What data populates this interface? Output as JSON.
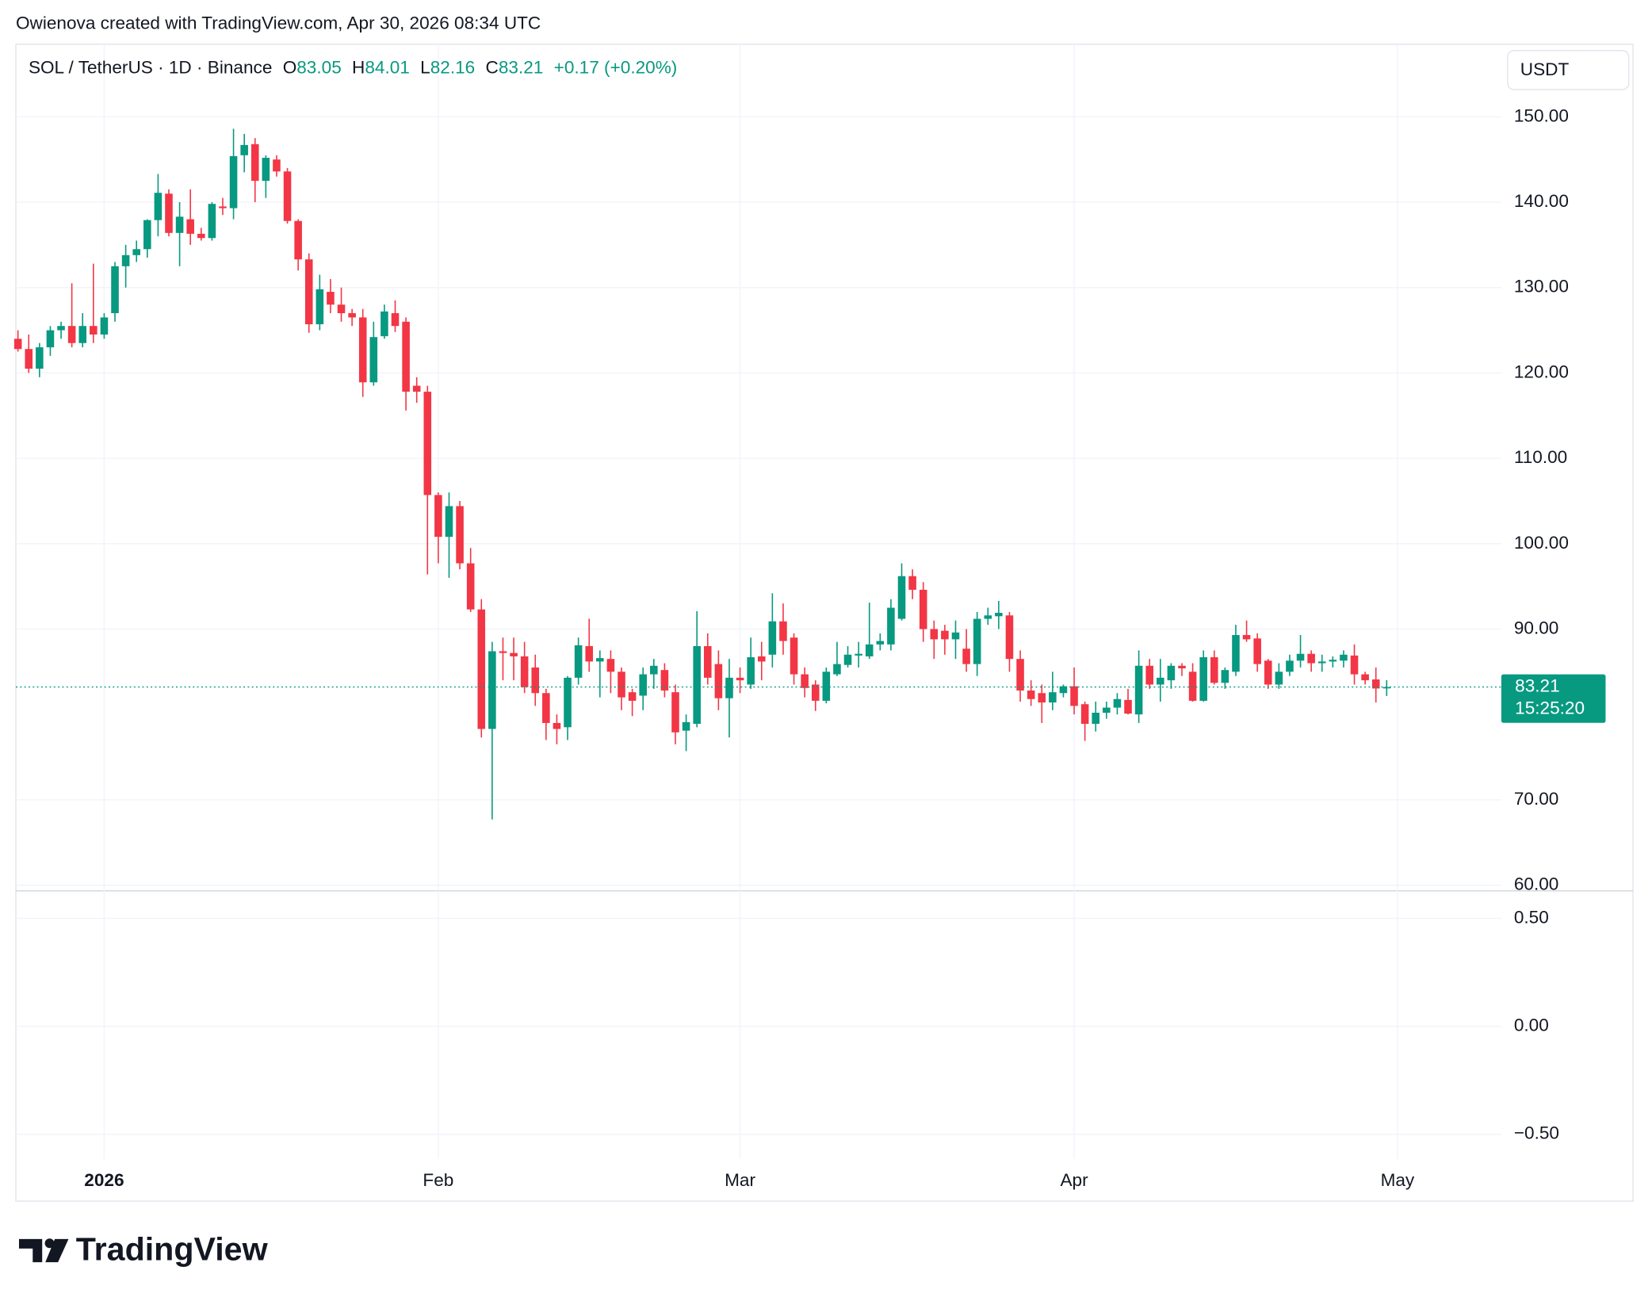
{
  "header": {
    "credit": "Owienova created with TradingView.com, Apr 30, 2026 08:34 UTC",
    "currency_button": "USDT"
  },
  "footer": {
    "logo": "TradingView"
  },
  "chart_data": {
    "type": "candlestick",
    "symbol": "SOL / TetherUS · 1D · Binance",
    "ohlc_letters": [
      "O",
      "H",
      "L",
      "C"
    ],
    "change_label": "+0.17 (+0.20%)",
    "countdown": "15:25:20",
    "up_color": "#089981",
    "down_color": "#f23645",
    "grid": true,
    "categories": [
      null,
      null,
      null,
      null,
      null,
      null,
      null,
      null,
      "2026",
      null,
      null,
      null,
      null,
      null,
      null,
      null,
      null,
      null,
      null,
      null,
      null,
      null,
      null,
      null,
      null,
      null,
      null,
      null,
      null,
      null,
      null,
      null,
      null,
      null,
      null,
      null,
      null,
      null,
      null,
      "Feb",
      null,
      null,
      null,
      null,
      null,
      null,
      null,
      null,
      null,
      null,
      null,
      null,
      null,
      null,
      null,
      null,
      null,
      null,
      null,
      null,
      null,
      null,
      null,
      null,
      null,
      null,
      null,
      "Mar",
      null,
      null,
      null,
      null,
      null,
      null,
      null,
      null,
      null,
      null,
      null,
      null,
      null,
      null,
      null,
      null,
      null,
      null,
      null,
      null,
      null,
      null,
      null,
      null,
      null,
      null,
      null,
      null,
      null,
      null,
      "Apr",
      null,
      null,
      null,
      null,
      null,
      null,
      null,
      null,
      null,
      null,
      null,
      null,
      null,
      null,
      null,
      null,
      null,
      null,
      null,
      null,
      null,
      null,
      null,
      null,
      null,
      null,
      null,
      null,
      null,
      "May"
    ],
    "open": [
      124.0,
      122.8,
      120.5,
      123.0,
      125.0,
      125.5,
      123.5,
      125.5,
      124.5,
      127.0,
      132.5,
      133.8,
      134.5,
      137.9,
      141.0,
      136.4,
      138.0,
      136.3,
      135.8,
      139.5,
      139.3,
      145.5,
      146.8,
      142.5,
      145.0,
      143.6,
      137.8,
      133.3,
      125.7,
      129.5,
      128.0,
      127.0,
      126.5,
      118.9,
      124.3,
      127.0,
      126.0,
      118.5,
      117.8,
      105.7,
      100.8,
      104.4,
      97.7,
      92.3,
      78.3,
      87.4,
      87.2,
      86.8,
      85.5,
      82.5,
      79.0,
      78.5,
      84.3,
      88.0,
      86.2,
      86.5,
      85.0,
      82.6,
      82.2,
      84.7,
      85.2,
      82.6,
      78.1,
      78.9,
      88.0,
      85.9,
      81.9,
      84.3,
      83.5,
      86.8,
      87.0,
      90.9,
      89.0,
      84.7,
      83.5,
      81.6,
      84.7,
      85.8,
      86.9,
      86.8,
      88.2,
      88.2,
      91.2,
      96.2,
      94.6,
      90.0,
      89.8,
      88.8,
      87.7,
      85.9,
      91.2,
      91.5,
      91.6,
      86.5,
      82.8,
      82.5,
      81.4,
      82.5,
      83.3,
      81.2,
      78.9,
      80.2,
      80.8,
      81.7,
      80.0,
      85.7,
      83.5,
      84.0,
      85.7,
      85.0,
      81.6,
      86.7,
      83.7,
      85.0,
      89.3,
      88.9,
      86.3,
      83.5,
      85.0,
      86.3,
      87.1,
      86.0,
      86.2,
      86.3,
      86.9,
      84.7,
      84.1,
      83.05,
      null
    ],
    "high": [
      125.0,
      124.5,
      123.5,
      125.5,
      126.0,
      130.5,
      127.0,
      132.8,
      127.0,
      133.0,
      135.0,
      135.5,
      138.0,
      143.3,
      141.5,
      140.0,
      141.5,
      137.0,
      140.0,
      140.5,
      148.6,
      148.0,
      147.5,
      145.5,
      145.5,
      144.0,
      138.0,
      134.0,
      131.5,
      131.0,
      130.0,
      127.5,
      127.5,
      126.0,
      128.0,
      128.5,
      126.5,
      119.5,
      118.5,
      106.0,
      106.0,
      105.0,
      99.5,
      93.5,
      88.5,
      89.0,
      89.0,
      88.5,
      87.0,
      83.0,
      80.0,
      84.5,
      89.0,
      91.2,
      87.5,
      87.5,
      85.5,
      83.0,
      85.5,
      86.5,
      86.0,
      83.5,
      80.0,
      92.1,
      89.5,
      87.5,
      86.5,
      85.5,
      89.0,
      88.5,
      94.2,
      93.0,
      89.5,
      85.5,
      84.0,
      85.5,
      88.5,
      88.0,
      88.5,
      93.1,
      89.5,
      93.5,
      97.7,
      97.0,
      95.5,
      91.0,
      90.5,
      91.0,
      90.0,
      92.0,
      92.5,
      93.3,
      92.0,
      87.5,
      84.0,
      83.5,
      85.0,
      83.5,
      85.5,
      81.5,
      81.5,
      81.5,
      82.5,
      83.0,
      87.5,
      86.5,
      86.5,
      86.0,
      86.0,
      86.0,
      87.5,
      87.5,
      85.5,
      90.5,
      91.0,
      89.5,
      86.5,
      86.0,
      87.0,
      89.3,
      87.5,
      87.0,
      86.8,
      87.5,
      88.2,
      85.0,
      85.5,
      84.01,
      null
    ],
    "low": [
      122.5,
      120.0,
      119.5,
      122.0,
      124.0,
      123.0,
      123.0,
      123.5,
      124.0,
      126.0,
      130.0,
      133.0,
      133.5,
      136.0,
      136.0,
      132.5,
      135.0,
      135.5,
      135.5,
      138.5,
      138.0,
      143.5,
      140.0,
      140.5,
      143.0,
      137.5,
      132.0,
      124.7,
      125.0,
      127.0,
      126.0,
      125.5,
      117.2,
      118.5,
      124.0,
      124.8,
      115.6,
      116.5,
      96.4,
      97.7,
      96.0,
      97.0,
      92.0,
      77.3,
      67.7,
      84.0,
      84.0,
      82.5,
      81.0,
      77.0,
      76.5,
      77.0,
      83.5,
      85.0,
      82.0,
      82.5,
      80.5,
      79.8,
      80.5,
      83.0,
      82.0,
      76.5,
      75.7,
      78.5,
      83.5,
      80.5,
      77.3,
      82.5,
      83.0,
      84.0,
      85.5,
      87.0,
      83.5,
      82.0,
      80.4,
      81.3,
      84.5,
      85.5,
      85.5,
      86.5,
      87.5,
      87.5,
      91.0,
      93.5,
      88.5,
      86.5,
      87.0,
      86.5,
      85.0,
      84.5,
      90.5,
      90.0,
      85.0,
      81.5,
      81.0,
      79.0,
      80.5,
      82.0,
      80.0,
      76.9,
      78.0,
      79.5,
      80.0,
      80.0,
      79.0,
      83.0,
      81.5,
      83.0,
      84.5,
      81.5,
      81.5,
      83.5,
      83.0,
      84.5,
      88.5,
      85.0,
      83.0,
      83.0,
      84.5,
      85.5,
      85.0,
      85.0,
      85.5,
      85.5,
      83.5,
      83.5,
      81.4,
      82.16,
      null
    ],
    "close": [
      122.8,
      120.5,
      123.0,
      125.0,
      125.5,
      123.5,
      125.5,
      124.5,
      126.5,
      132.5,
      133.8,
      134.5,
      137.9,
      141.1,
      136.4,
      138.3,
      136.3,
      135.8,
      139.8,
      139.3,
      145.4,
      146.7,
      142.5,
      145.2,
      143.6,
      137.8,
      133.3,
      125.7,
      129.8,
      128.0,
      127.0,
      126.5,
      118.9,
      124.2,
      127.2,
      125.5,
      117.8,
      117.8,
      105.7,
      100.8,
      104.4,
      97.7,
      92.3,
      78.3,
      87.4,
      87.2,
      86.8,
      83.2,
      82.5,
      79.0,
      78.3,
      84.3,
      88.1,
      86.2,
      86.6,
      85.0,
      82.0,
      81.6,
      84.7,
      85.7,
      82.8,
      77.9,
      79.1,
      88.0,
      84.3,
      81.9,
      84.3,
      84.0,
      86.7,
      86.2,
      90.9,
      88.6,
      84.7,
      83.1,
      81.6,
      85.0,
      85.9,
      87.0,
      87.1,
      88.2,
      88.6,
      92.5,
      96.2,
      94.6,
      90.0,
      88.8,
      88.8,
      89.6,
      85.9,
      91.2,
      91.6,
      91.9,
      86.5,
      82.8,
      81.8,
      81.4,
      82.6,
      83.3,
      81.0,
      78.9,
      80.2,
      80.8,
      81.8,
      80.1,
      85.7,
      83.5,
      84.3,
      85.7,
      85.4,
      81.6,
      86.7,
      83.7,
      85.2,
      89.3,
      88.8,
      85.9,
      83.5,
      85.0,
      86.3,
      87.1,
      86.0,
      86.2,
      86.4,
      87.0,
      84.7,
      84.0,
      83.04,
      83.21,
      null
    ],
    "ylim": [
      59.4,
      158.5
    ],
    "yticks": [
      {
        "value": 150,
        "label": "150.00"
      },
      {
        "value": 140,
        "label": "140.00"
      },
      {
        "value": 130,
        "label": "130.00"
      },
      {
        "value": 120,
        "label": "120.00"
      },
      {
        "value": 110,
        "label": "110.00"
      },
      {
        "value": 100,
        "label": "100.00"
      },
      {
        "value": 90,
        "label": "90.00"
      },
      {
        "value": 70,
        "label": "70.00"
      },
      {
        "value": 60,
        "label": "60.00"
      }
    ],
    "lower_pane": {
      "ylim": [
        -0.59,
        0.63
      ],
      "yticks": [
        {
          "value": 0.5,
          "label": "0.50"
        },
        {
          "value": 0,
          "label": "0.00"
        },
        {
          "value": -0.5,
          "label": "−0.50"
        }
      ]
    }
  }
}
